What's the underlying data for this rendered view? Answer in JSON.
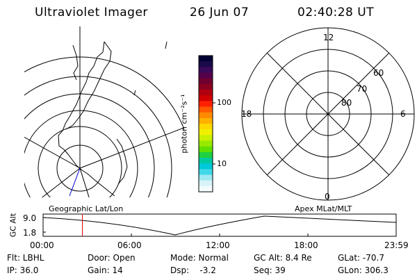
{
  "header": {
    "title": "Ultraviolet Imager",
    "date": "26 Jun 07",
    "time": "02:40:28 UT"
  },
  "colorbar": {
    "label": "photon cm⁻²s⁻¹",
    "ticks": [
      "100",
      "10"
    ],
    "colors": [
      "#000033",
      "#1a0a4a",
      "#3a0a5a",
      "#55004a",
      "#700030",
      "#8b0020",
      "#b00010",
      "#d00000",
      "#ff2000",
      "#ff5a00",
      "#ff8a00",
      "#ffb000",
      "#ffd800",
      "#f0f000",
      "#c8f000",
      "#98e800",
      "#60e000",
      "#20d040",
      "#00c8a0",
      "#00c8d8",
      "#40d8e8",
      "#a0e8f0",
      "#d8f4f8",
      "#f4fbfd"
    ]
  },
  "polar_plot": {
    "labels": {
      "top": "12",
      "left": "18",
      "right": "6",
      "bottom": "0"
    },
    "lat_labels": [
      "60",
      "70",
      "80"
    ]
  },
  "timeline": {
    "left_label": "Geographic Lat/Lon",
    "right_label": "Apex MLat/MLT",
    "y_axis_label": "GC Alt",
    "y_ticks": [
      "9.0",
      "1.8"
    ],
    "x_ticks": [
      "00:00",
      "06:00",
      "12:00",
      "18:00",
      "23:59"
    ],
    "marker_time_hours": 2.67
  },
  "info": {
    "row1": [
      "Flt: LBHL",
      "Door: Open",
      "Mode: Normal",
      "GC Alt: 8.4 Re",
      "GLat: -70.7"
    ],
    "row2": [
      "IP: 36.0",
      "Gain: 14",
      "Dsp:    -3.2",
      "Seq: 39",
      "GLon: 306.3"
    ]
  }
}
